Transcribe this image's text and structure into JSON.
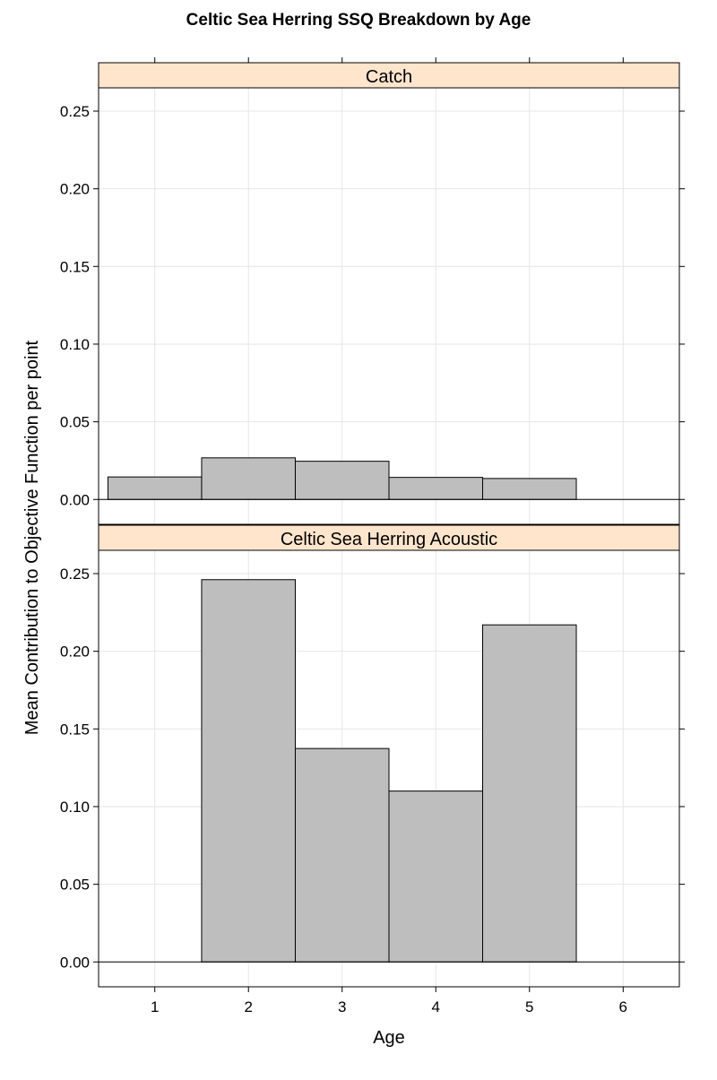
{
  "chart_data": {
    "type": "bar",
    "title": "Celtic Sea Herring SSQ Breakdown by Age",
    "xlabel": "Age",
    "ylabel": "Mean Contribution to Objective Function per point",
    "xlim": [
      0.4,
      6.6
    ],
    "xticks": [
      1,
      2,
      3,
      4,
      5,
      6
    ],
    "ylim": [
      -0.016,
      0.265
    ],
    "yticks": [
      0.0,
      0.05,
      0.1,
      0.15,
      0.2,
      0.25
    ],
    "ytick_labels": [
      "0.00",
      "0.05",
      "0.10",
      "0.15",
      "0.20",
      "0.25"
    ],
    "grid": true,
    "colors": {
      "bar_fill": "#bebebe",
      "bar_stroke": "#000000",
      "strip_fill": "#ffe5cc",
      "grid": "#e6e6e6"
    },
    "panels": [
      {
        "name": "Catch",
        "ages": [
          1,
          2,
          3,
          4,
          5
        ],
        "values": [
          0.0145,
          0.0268,
          0.0246,
          0.0142,
          0.0135
        ]
      },
      {
        "name": "Celtic Sea Herring Acoustic",
        "ages": [
          2,
          3,
          4,
          5
        ],
        "values": [
          0.2461,
          0.1374,
          0.11,
          0.217
        ]
      }
    ]
  }
}
